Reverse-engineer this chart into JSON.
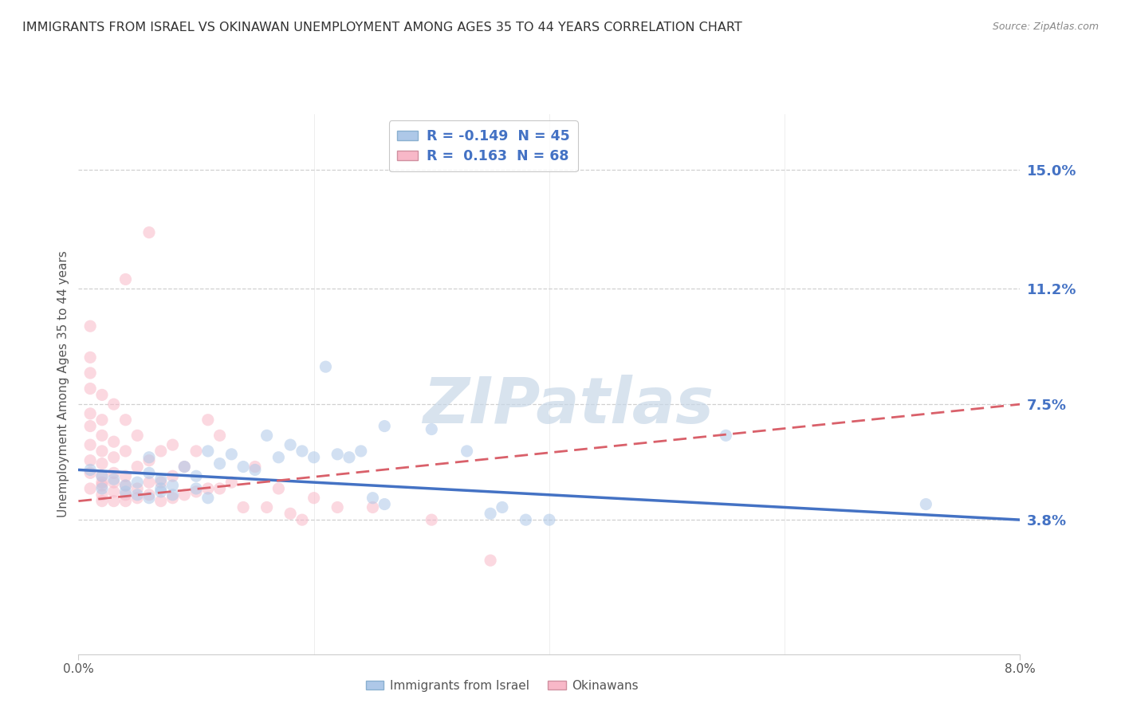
{
  "title": "IMMIGRANTS FROM ISRAEL VS OKINAWAN UNEMPLOYMENT AMONG AGES 35 TO 44 YEARS CORRELATION CHART",
  "source": "Source: ZipAtlas.com",
  "ylabel": "Unemployment Among Ages 35 to 44 years",
  "yaxis_labels": [
    "15.0%",
    "11.2%",
    "7.5%",
    "3.8%"
  ],
  "yaxis_values": [
    0.15,
    0.112,
    0.075,
    0.038
  ],
  "xlim": [
    0.0,
    0.08
  ],
  "ylim": [
    -0.005,
    0.168
  ],
  "legend1_label": "R = -0.149  N = 45",
  "legend2_label": "R =  0.163  N = 68",
  "legend1_color": "#aec8e8",
  "legend2_color": "#f8b8c8",
  "line1_color": "#4472c4",
  "line2_color": "#d9606a",
  "watermark_text": "ZIPatlas",
  "scatter_blue": [
    [
      0.001,
      0.054
    ],
    [
      0.002,
      0.048
    ],
    [
      0.002,
      0.052
    ],
    [
      0.003,
      0.051
    ],
    [
      0.004,
      0.047
    ],
    [
      0.004,
      0.049
    ],
    [
      0.005,
      0.05
    ],
    [
      0.005,
      0.046
    ],
    [
      0.006,
      0.045
    ],
    [
      0.006,
      0.053
    ],
    [
      0.006,
      0.058
    ],
    [
      0.007,
      0.047
    ],
    [
      0.007,
      0.048
    ],
    [
      0.007,
      0.051
    ],
    [
      0.008,
      0.046
    ],
    [
      0.008,
      0.049
    ],
    [
      0.009,
      0.055
    ],
    [
      0.01,
      0.048
    ],
    [
      0.01,
      0.052
    ],
    [
      0.011,
      0.045
    ],
    [
      0.011,
      0.06
    ],
    [
      0.012,
      0.056
    ],
    [
      0.013,
      0.059
    ],
    [
      0.014,
      0.055
    ],
    [
      0.015,
      0.054
    ],
    [
      0.016,
      0.065
    ],
    [
      0.017,
      0.058
    ],
    [
      0.018,
      0.062
    ],
    [
      0.019,
      0.06
    ],
    [
      0.02,
      0.058
    ],
    [
      0.021,
      0.087
    ],
    [
      0.022,
      0.059
    ],
    [
      0.023,
      0.058
    ],
    [
      0.024,
      0.06
    ],
    [
      0.025,
      0.045
    ],
    [
      0.026,
      0.043
    ],
    [
      0.026,
      0.068
    ],
    [
      0.03,
      0.067
    ],
    [
      0.033,
      0.06
    ],
    [
      0.035,
      0.04
    ],
    [
      0.036,
      0.042
    ],
    [
      0.038,
      0.038
    ],
    [
      0.04,
      0.038
    ],
    [
      0.055,
      0.065
    ],
    [
      0.072,
      0.043
    ]
  ],
  "scatter_pink": [
    [
      0.001,
      0.048
    ],
    [
      0.001,
      0.053
    ],
    [
      0.001,
      0.057
    ],
    [
      0.001,
      0.062
    ],
    [
      0.001,
      0.068
    ],
    [
      0.001,
      0.072
    ],
    [
      0.001,
      0.08
    ],
    [
      0.001,
      0.085
    ],
    [
      0.001,
      0.09
    ],
    [
      0.001,
      0.1
    ],
    [
      0.002,
      0.044
    ],
    [
      0.002,
      0.046
    ],
    [
      0.002,
      0.049
    ],
    [
      0.002,
      0.05
    ],
    [
      0.002,
      0.052
    ],
    [
      0.002,
      0.056
    ],
    [
      0.002,
      0.06
    ],
    [
      0.002,
      0.065
    ],
    [
      0.002,
      0.07
    ],
    [
      0.002,
      0.078
    ],
    [
      0.003,
      0.044
    ],
    [
      0.003,
      0.047
    ],
    [
      0.003,
      0.05
    ],
    [
      0.003,
      0.053
    ],
    [
      0.003,
      0.058
    ],
    [
      0.003,
      0.063
    ],
    [
      0.003,
      0.075
    ],
    [
      0.004,
      0.044
    ],
    [
      0.004,
      0.046
    ],
    [
      0.004,
      0.049
    ],
    [
      0.004,
      0.052
    ],
    [
      0.004,
      0.06
    ],
    [
      0.004,
      0.07
    ],
    [
      0.004,
      0.115
    ],
    [
      0.005,
      0.045
    ],
    [
      0.005,
      0.048
    ],
    [
      0.005,
      0.055
    ],
    [
      0.005,
      0.065
    ],
    [
      0.006,
      0.046
    ],
    [
      0.006,
      0.05
    ],
    [
      0.006,
      0.057
    ],
    [
      0.006,
      0.13
    ],
    [
      0.007,
      0.044
    ],
    [
      0.007,
      0.05
    ],
    [
      0.007,
      0.06
    ],
    [
      0.008,
      0.045
    ],
    [
      0.008,
      0.052
    ],
    [
      0.008,
      0.062
    ],
    [
      0.009,
      0.046
    ],
    [
      0.009,
      0.055
    ],
    [
      0.01,
      0.047
    ],
    [
      0.01,
      0.06
    ],
    [
      0.011,
      0.048
    ],
    [
      0.011,
      0.07
    ],
    [
      0.012,
      0.048
    ],
    [
      0.012,
      0.065
    ],
    [
      0.013,
      0.05
    ],
    [
      0.014,
      0.042
    ],
    [
      0.015,
      0.055
    ],
    [
      0.016,
      0.042
    ],
    [
      0.017,
      0.048
    ],
    [
      0.018,
      0.04
    ],
    [
      0.019,
      0.038
    ],
    [
      0.02,
      0.045
    ],
    [
      0.022,
      0.042
    ],
    [
      0.025,
      0.042
    ],
    [
      0.03,
      0.038
    ],
    [
      0.035,
      0.025
    ]
  ],
  "blue_line_x": [
    0.0,
    0.08
  ],
  "blue_line_y": [
    0.054,
    0.038
  ],
  "pink_line_x": [
    0.0,
    0.08
  ],
  "pink_line_y": [
    0.044,
    0.075
  ],
  "bg_color": "#ffffff",
  "scatter_alpha": 0.55,
  "scatter_size": 120,
  "grid_color": "#d0d0d0",
  "tick_color": "#888888"
}
